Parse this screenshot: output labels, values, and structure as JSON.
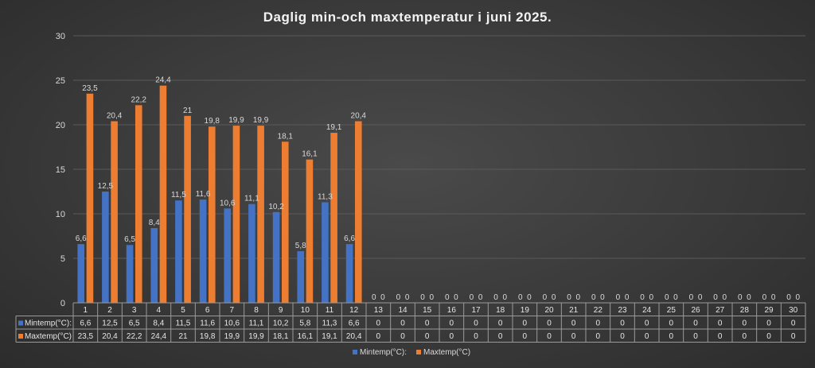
{
  "chart_data": {
    "type": "bar",
    "title": "Daglig min-och maxtemperatur i juni 2025.",
    "categories": [
      "1",
      "2",
      "3",
      "4",
      "5",
      "6",
      "7",
      "8",
      "9",
      "10",
      "11",
      "12",
      "13",
      "14",
      "15",
      "16",
      "17",
      "18",
      "19",
      "20",
      "21",
      "22",
      "23",
      "24",
      "25",
      "26",
      "27",
      "28",
      "29",
      "30"
    ],
    "series": [
      {
        "name": "Mintemp(°C):",
        "color": "#4472c4",
        "values": [
          6.6,
          12.5,
          6.5,
          8.4,
          11.5,
          11.6,
          10.6,
          11.1,
          10.2,
          5.8,
          11.3,
          6.6,
          0,
          0,
          0,
          0,
          0,
          0,
          0,
          0,
          0,
          0,
          0,
          0,
          0,
          0,
          0,
          0,
          0,
          0
        ],
        "labels": [
          "6,6",
          "12,5",
          "6,5",
          "8,4",
          "11,5",
          "11,6",
          "10,6",
          "11,1",
          "10,2",
          "5,8",
          "11,3",
          "6,6",
          "0",
          "0",
          "0",
          "0",
          "0",
          "0",
          "0",
          "0",
          "0",
          "0",
          "0",
          "0",
          "0",
          "0",
          "0",
          "0",
          "0",
          "0"
        ]
      },
      {
        "name": "Maxtemp(°C)",
        "color": "#ed7d31",
        "values": [
          23.5,
          20.4,
          22.2,
          24.4,
          21,
          19.8,
          19.9,
          19.9,
          18.1,
          16.1,
          19.1,
          20.4,
          0,
          0,
          0,
          0,
          0,
          0,
          0,
          0,
          0,
          0,
          0,
          0,
          0,
          0,
          0,
          0,
          0,
          0
        ],
        "labels": [
          "23,5",
          "20,4",
          "22,2",
          "24,4",
          "21",
          "19,8",
          "19,9",
          "19,9",
          "18,1",
          "16,1",
          "19,1",
          "20,4",
          "0",
          "0",
          "0",
          "0",
          "0",
          "0",
          "0",
          "0",
          "0",
          "0",
          "0",
          "0",
          "0",
          "0",
          "0",
          "0",
          "0",
          "0"
        ]
      }
    ],
    "ylim": [
      0,
      30
    ],
    "yticks": [
      0,
      5,
      10,
      15,
      20,
      25,
      30
    ],
    "grid": true,
    "legend_position": "bottom",
    "data_table": true
  }
}
